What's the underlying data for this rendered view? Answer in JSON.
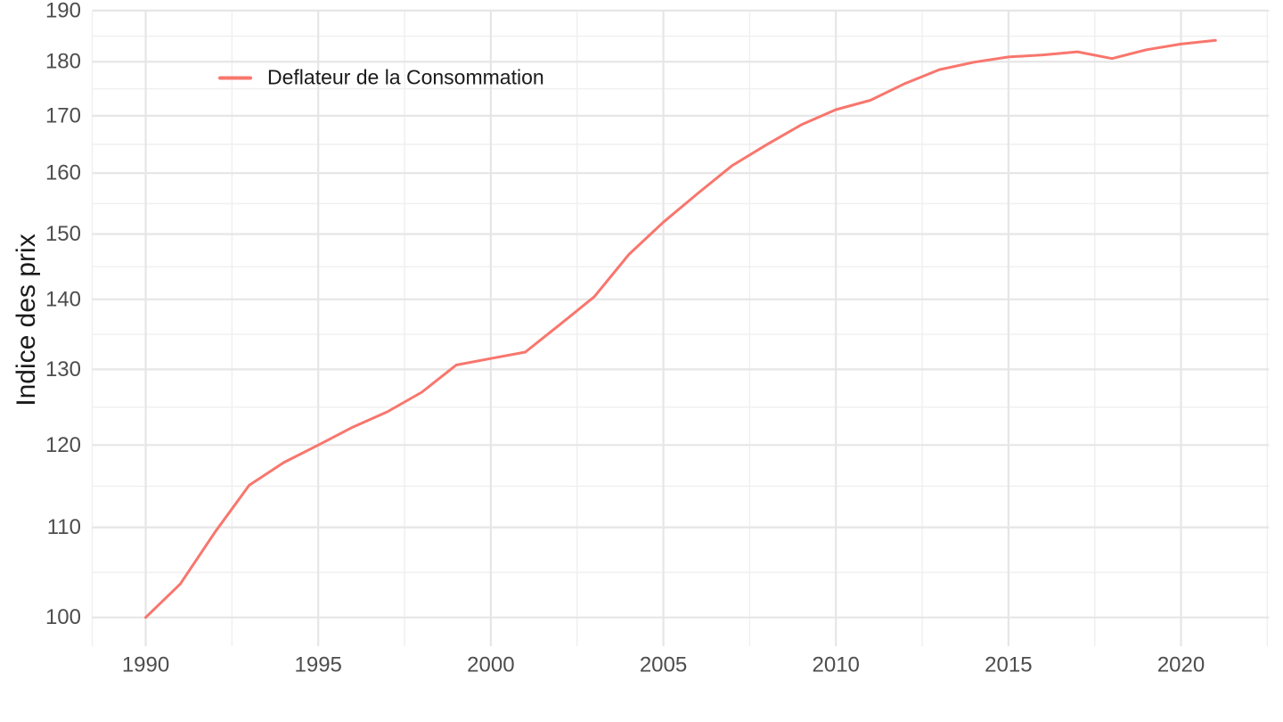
{
  "chart_data": {
    "type": "line",
    "title": "",
    "xlabel": "",
    "ylabel": "Indice des prix",
    "y_scale": "log",
    "grid": true,
    "legend_position": "inside-top-left",
    "x_ticks": [
      1990,
      1995,
      2000,
      2005,
      2010,
      2015,
      2020
    ],
    "y_ticks": [
      100,
      110,
      120,
      130,
      140,
      150,
      160,
      170,
      180,
      190
    ],
    "xlim": [
      1988.45,
      2022.55
    ],
    "ylim": [
      97.0,
      189.8
    ],
    "x": [
      1990,
      1991,
      1992,
      1993,
      1994,
      1995,
      1996,
      1997,
      1998,
      1999,
      2000,
      2001,
      2002,
      2003,
      2004,
      2005,
      2006,
      2007,
      2008,
      2009,
      2010,
      2011,
      2012,
      2013,
      2014,
      2015,
      2016,
      2017,
      2018,
      2019,
      2020,
      2021
    ],
    "series": [
      {
        "name": "Deflateur de la Consommation",
        "color": "#F8766D",
        "values": [
          100.0,
          103.6,
          109.4,
          115.0,
          117.8,
          120.0,
          122.3,
          124.3,
          126.9,
          130.6,
          131.5,
          132.4,
          136.3,
          140.4,
          146.8,
          151.9,
          156.6,
          161.3,
          164.9,
          168.4,
          171.1,
          172.8,
          175.9,
          178.5,
          179.9,
          180.9,
          181.3,
          181.9,
          180.6,
          182.3,
          183.4,
          184.1
        ]
      }
    ],
    "style": {
      "grid_major_color": "#e6e6e6",
      "grid_minor_color": "#efefef",
      "tick_label_color": "#4d4d4d",
      "text_color": "#1a1a1a",
      "background": "#ffffff"
    }
  }
}
